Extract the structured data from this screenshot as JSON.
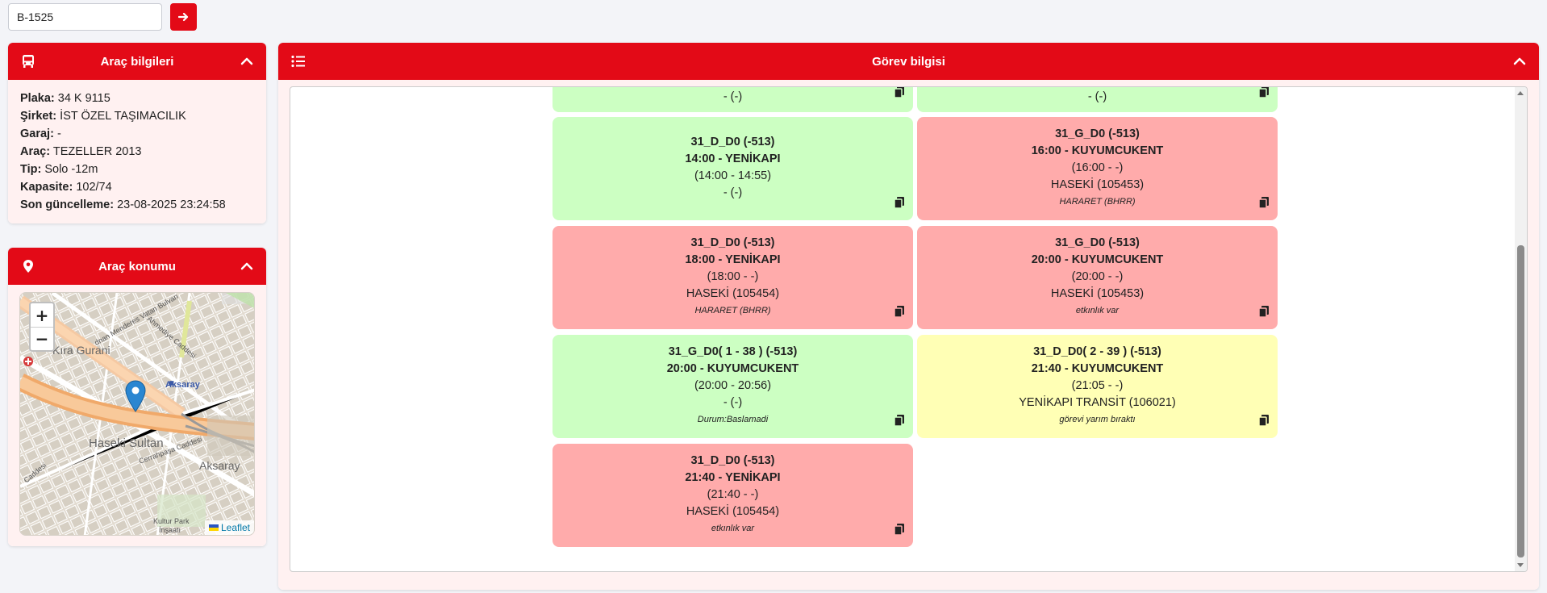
{
  "search": {
    "value": "B-1525"
  },
  "colors": {
    "accent": "#e30a17",
    "green": "#ccffc2",
    "red": "#ffabab",
    "yellow": "#ffffb5",
    "panel_bg": "#fff1f1"
  },
  "vehicle_panel": {
    "title": "Araç bilgileri",
    "icon": "bus-icon",
    "rows": [
      {
        "label": "Plaka:",
        "value": "34 K 9115"
      },
      {
        "label": "Şirket:",
        "value": "İST ÖZEL TAŞIMACILIK"
      },
      {
        "label": "Garaj:",
        "value": "-"
      },
      {
        "label": "Araç:",
        "value": "TEZELLER 2013"
      },
      {
        "label": "Tip:",
        "value": "Solo -12m"
      },
      {
        "label": "Kapasite:",
        "value": "102/74"
      },
      {
        "label": "Son güncelleme:",
        "value": "23-08-2025 23:24:58"
      }
    ]
  },
  "location_panel": {
    "title": "Araç konumu",
    "icon": "map-pin-icon",
    "map": {
      "zoom_in": "+",
      "zoom_out": "−",
      "attribution": "Leaflet",
      "labels": {
        "street1": "dnan Menderes Vatan Bulvarı",
        "district1": "Kıra Gurani",
        "station": "Aksaray",
        "district2": "Haseki Sultan",
        "district3": "Aksaray",
        "street2": "Cerrahpaşa Caddesi",
        "park": "Kultur Park",
        "park2": "İnşaatı",
        "street3": "Ahmediye Caddesi",
        "street4": "Caddesi"
      }
    }
  },
  "task_panel": {
    "title": "Görev bilgisi",
    "icon": "list-icon",
    "top_partial": [
      "- (-)",
      "- (-)"
    ],
    "tasks": [
      {
        "code": "31_D_D0 (-513)",
        "departure": "14:00 - YENİKAPI",
        "times": "(14:00 - 14:55)",
        "driver": "- (-)",
        "note": "",
        "color": "green"
      },
      {
        "code": "31_G_D0 (-513)",
        "departure": "16:00 - KUYUMCUKENT",
        "times": "(16:00 - -)",
        "driver": "HASEKİ (105453)",
        "note": "HARARET (BHRR)",
        "color": "red"
      },
      {
        "code": "31_D_D0 (-513)",
        "departure": "18:00 - YENİKAPI",
        "times": "(18:00 - -)",
        "driver": "HASEKİ (105454)",
        "note": "HARARET (BHRR)",
        "color": "red"
      },
      {
        "code": "31_G_D0 (-513)",
        "departure": "20:00 - KUYUMCUKENT",
        "times": "(20:00 - -)",
        "driver": "HASEKİ (105453)",
        "note": "etkınlık var",
        "color": "red"
      },
      {
        "code": "31_G_D0( 1 - 38 ) (-513)",
        "departure": "20:00 - KUYUMCUKENT",
        "times": "(20:00 - 20:56)",
        "driver": "- (-)",
        "note": "Durum:Baslamadi",
        "color": "green"
      },
      {
        "code": "31_D_D0( 2 - 39 ) (-513)",
        "departure": "21:40 - KUYUMCUKENT",
        "times": "(21:05 - -)",
        "driver": "YENİKAPI TRANSİT (106021)",
        "note": "görevi yarım bıraktı",
        "color": "yellow"
      },
      {
        "code": "31_D_D0 (-513)",
        "departure": "21:40 - YENİKAPI",
        "times": "(21:40 - -)",
        "driver": "HASEKİ (105454)",
        "note": "etkınlık var",
        "color": "red"
      }
    ]
  }
}
